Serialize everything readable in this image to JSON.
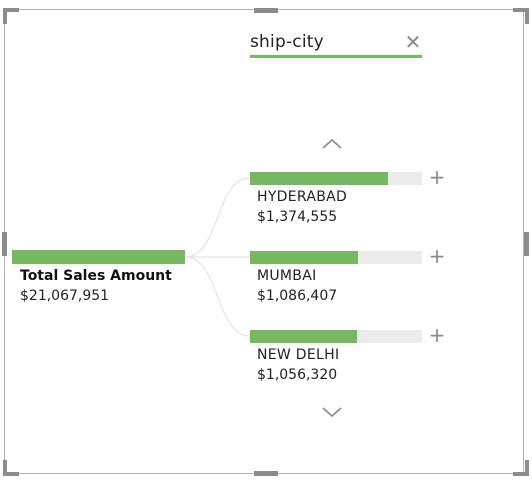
{
  "decomposition_tree": {
    "field": {
      "label": "ship-city",
      "close_icon": "close-icon"
    },
    "nav": {
      "up_icon": "chevron-up-icon",
      "down_icon": "chevron-down-icon"
    },
    "root": {
      "title": "Total Sales Amount",
      "value": "$21,067,951"
    },
    "nodes": [
      {
        "label": "HYDERABAD",
        "value": "$1,374,555",
        "fill_fraction": 0.8
      },
      {
        "label": "MUMBAI",
        "value": "$1,086,407",
        "fill_fraction": 0.63
      },
      {
        "label": "NEW DELHI",
        "value": "$1,056,320",
        "fill_fraction": 0.62
      }
    ],
    "expand_icon": "plus-icon",
    "colors": {
      "bar": "#76b861",
      "track": "#ebebeb",
      "connector": "#e4e4e4",
      "border": "#b3b3b3",
      "handle": "#8c8c8c"
    }
  }
}
